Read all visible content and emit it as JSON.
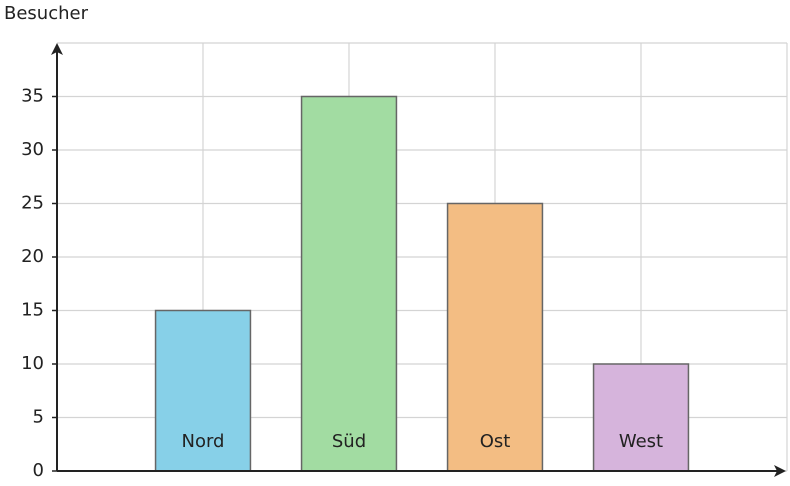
{
  "chart_data": {
    "type": "bar",
    "y_label": "Besucher",
    "categories": [
      "Nord",
      "Süd",
      "Ost",
      "West"
    ],
    "values": [
      15,
      35,
      25,
      10
    ],
    "colors": [
      "#87d0e8",
      "#a2dca2",
      "#f3bd83",
      "#d6b4dc"
    ],
    "ylim": [
      0,
      40
    ],
    "yticks": [
      0,
      5,
      10,
      15,
      20,
      25,
      30,
      35
    ],
    "grid": true
  }
}
